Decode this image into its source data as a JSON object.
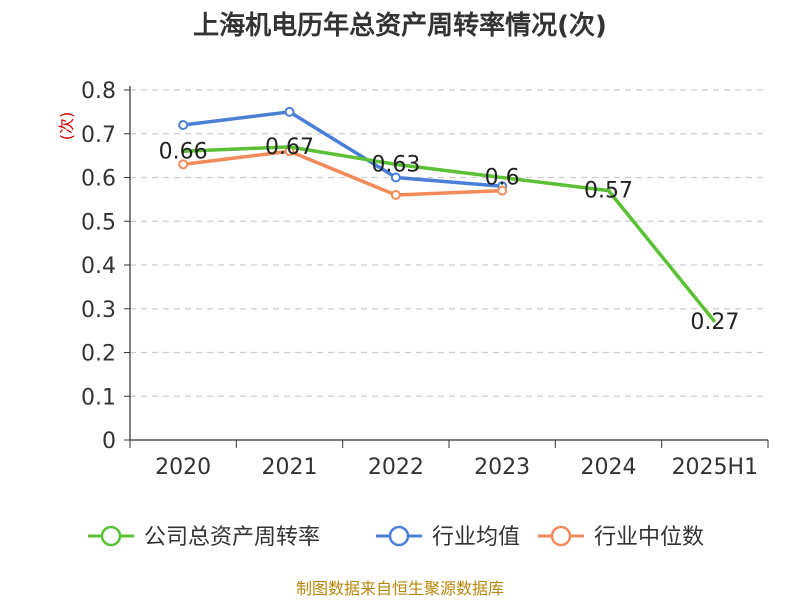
{
  "chart_data": {
    "type": "line",
    "title": "上海机电历年总资产周转率情况(次)",
    "ylabel": "(次)",
    "xlabel": "",
    "categories": [
      "2020",
      "2021",
      "2022",
      "2023",
      "2024",
      "2025H1"
    ],
    "ylim": [
      0,
      0.8
    ],
    "yticks": [
      "0",
      "0.1",
      "0.2",
      "0.3",
      "0.4",
      "0.5",
      "0.6",
      "0.7",
      "0.8"
    ],
    "grid": true,
    "legend_position": "bottom",
    "series": [
      {
        "name": "公司总资产周转率",
        "color": "#5ac134",
        "values": [
          0.66,
          0.67,
          0.63,
          0.6,
          0.57,
          0.27
        ],
        "data_labels": [
          "0.66",
          "0.67",
          "0.63",
          "0.6",
          "0.57",
          "0.27"
        ]
      },
      {
        "name": "行业均值",
        "color": "#4a7fd8",
        "values": [
          0.72,
          0.75,
          0.6,
          0.58,
          null,
          null
        ]
      },
      {
        "name": "行业中位数",
        "color": "#f28a5a",
        "values": [
          0.63,
          0.66,
          0.56,
          0.57,
          null,
          null
        ]
      }
    ]
  },
  "source": "制图数据来自恒生聚源数据库"
}
